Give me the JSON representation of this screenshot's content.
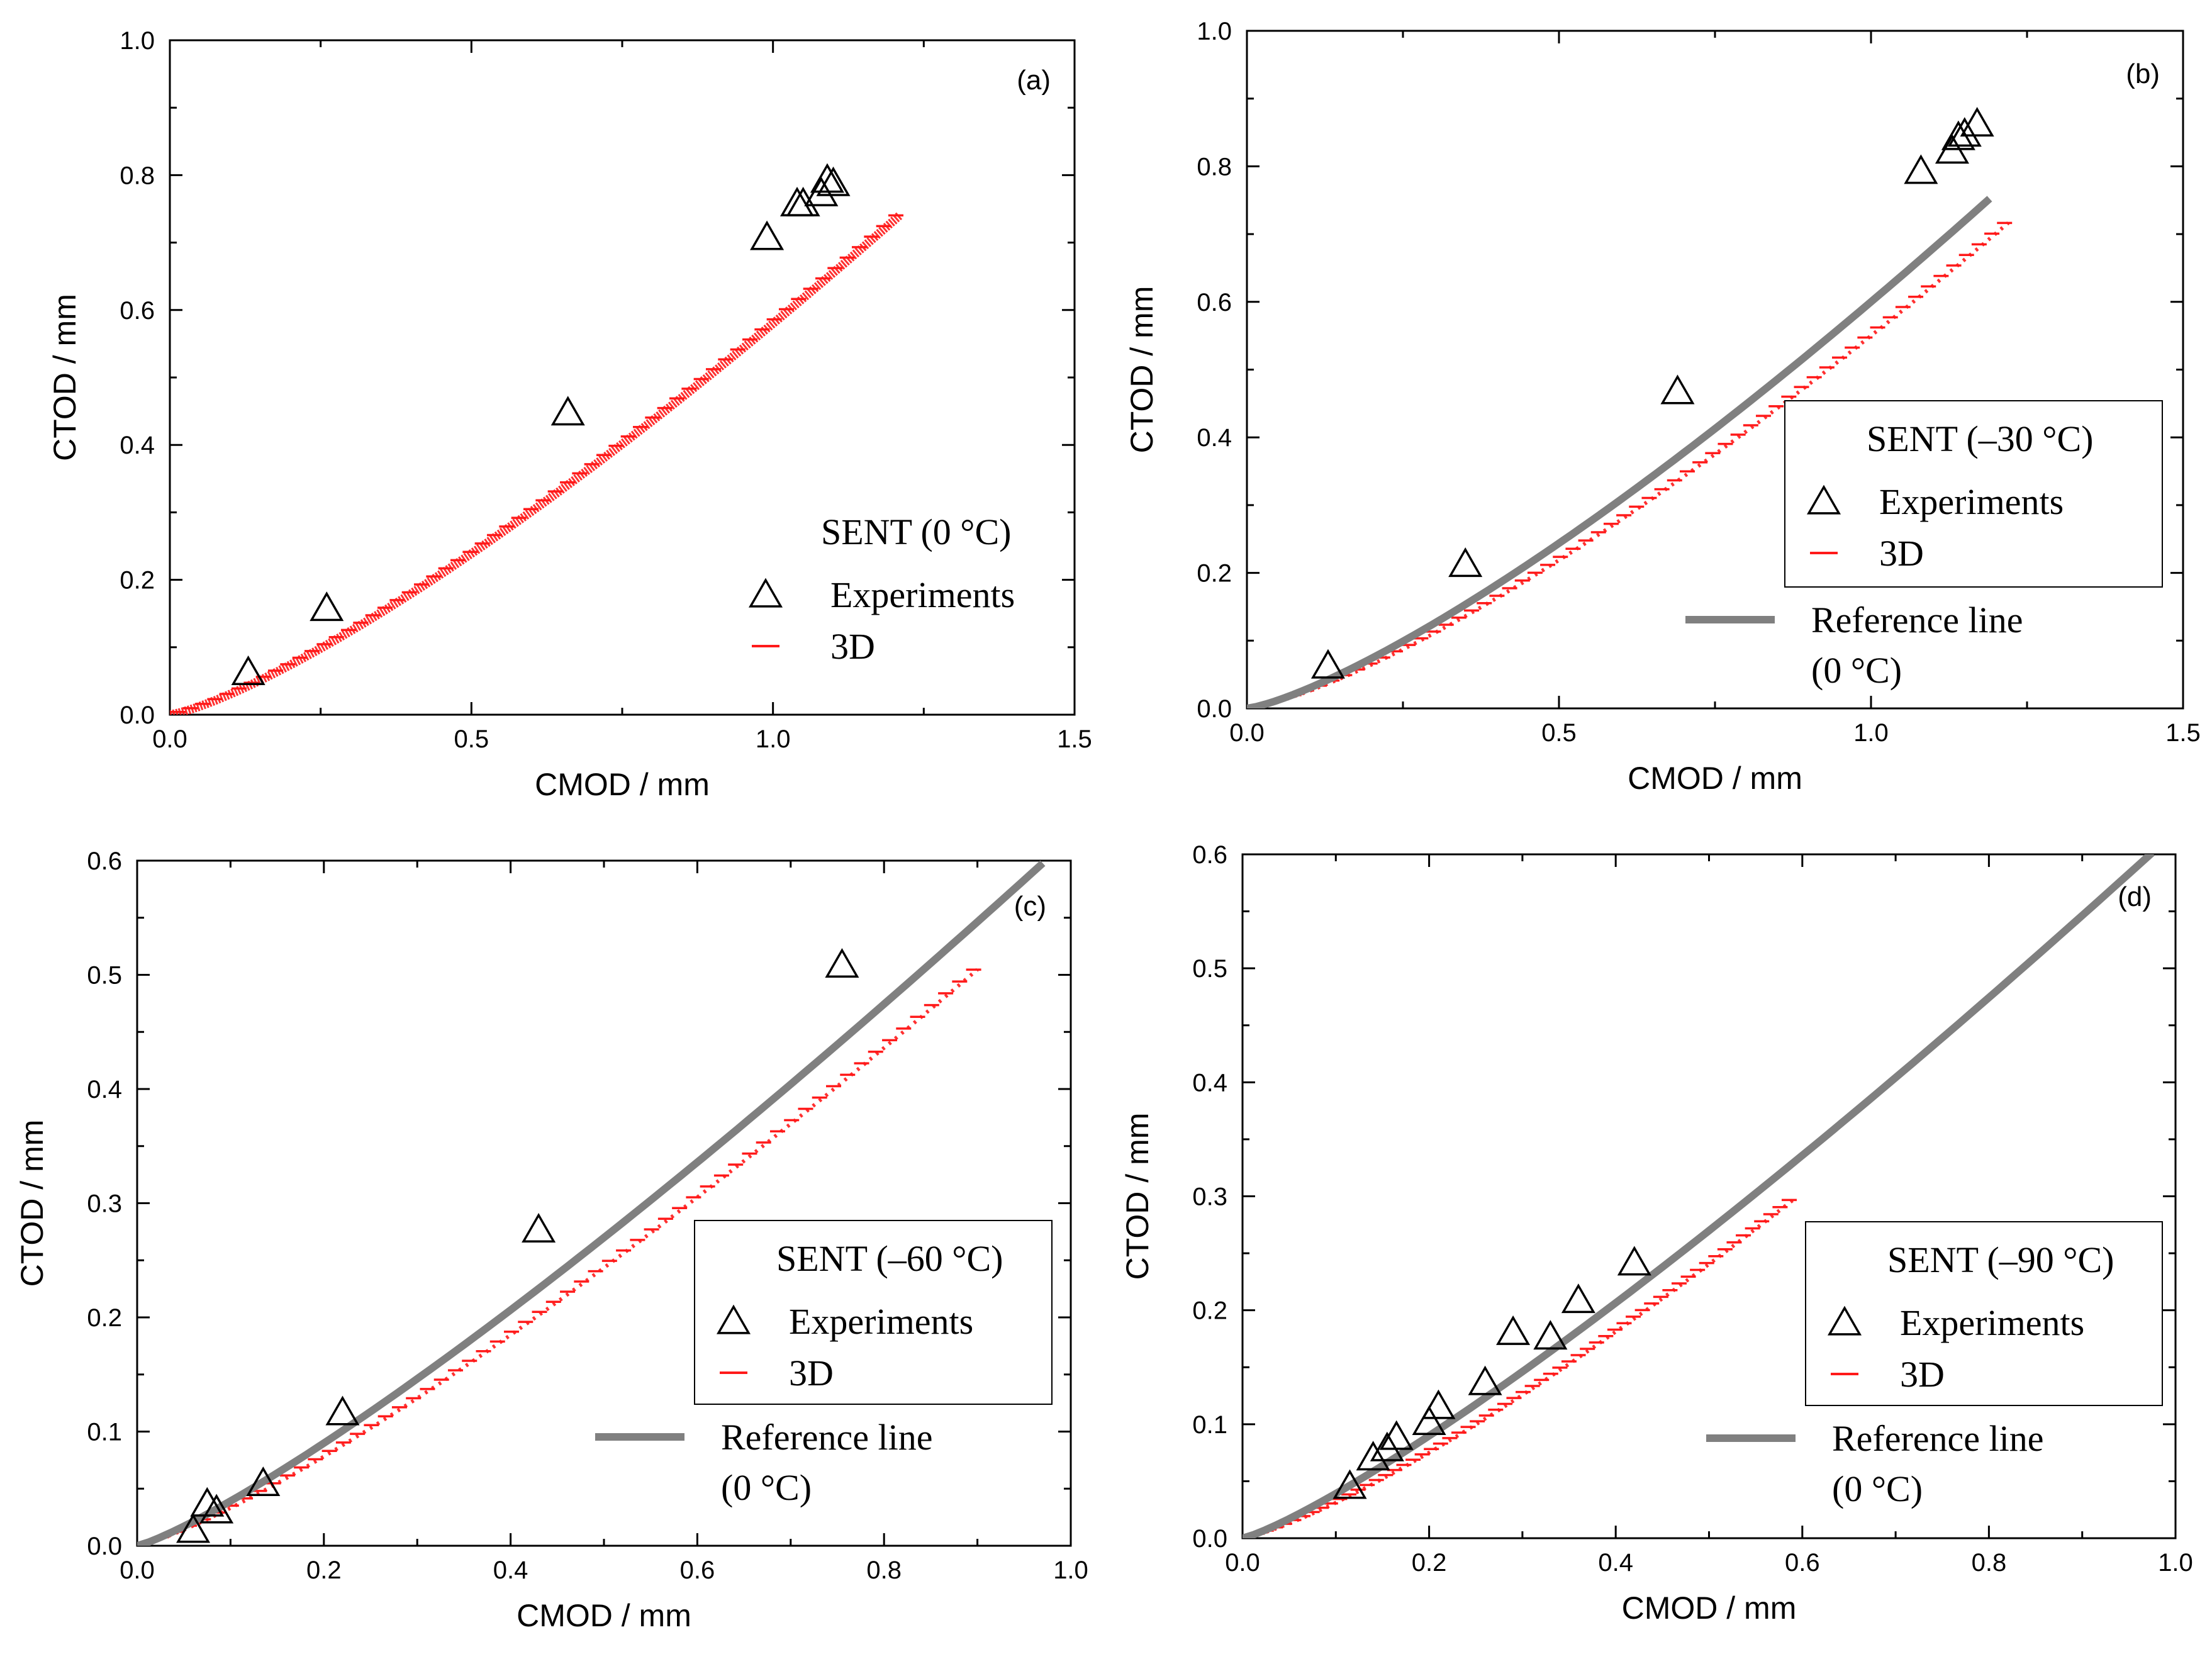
{
  "chart_data": [
    {
      "type": "scatter",
      "panel": "(a)",
      "xlabel": "CMOD / mm",
      "ylabel": "CTOD / mm",
      "xlim": [
        0,
        1.5
      ],
      "ylim": [
        0,
        1.0
      ],
      "xticks": [
        "0.0",
        "0.5",
        "1.0",
        "1.5"
      ],
      "yticks": [
        "0.0",
        "0.2",
        "0.4",
        "0.6",
        "0.8",
        "1.0"
      ],
      "legend": {
        "title": "SENT (0 °C)",
        "experiments": "Experiments",
        "sim": "3D",
        "ref": null,
        "ref2": null,
        "frame": false
      },
      "experiments": {
        "x": [
          0.13,
          0.26,
          0.66,
          0.99,
          1.04,
          1.05,
          1.08,
          1.09,
          1.1
        ],
        "y": [
          0.065,
          0.16,
          0.45,
          0.71,
          0.76,
          0.76,
          0.775,
          0.795,
          0.79
        ]
      },
      "sim_3d": {
        "x_end": 1.21,
        "k": 0.58,
        "p": 1.28
      },
      "reference": null
    },
    {
      "type": "scatter",
      "panel": "(b)",
      "xlabel": "CMOD / mm",
      "ylabel": "CTOD / mm",
      "xlim": [
        0,
        1.5
      ],
      "ylim": [
        0,
        1.0
      ],
      "xticks": [
        "0.0",
        "0.5",
        "1.0",
        "1.5"
      ],
      "yticks": [
        "0.0",
        "0.2",
        "0.4",
        "0.6",
        "0.8",
        "1.0"
      ],
      "legend": {
        "title": "SENT (–30 °C)",
        "experiments": "Experiments",
        "sim": "3D",
        "ref": "Reference line",
        "ref2": "(0 °C)",
        "frame": true
      },
      "experiments": {
        "x": [
          0.13,
          0.35,
          0.69,
          1.08,
          1.13,
          1.14,
          1.15,
          1.17
        ],
        "y": [
          0.065,
          0.215,
          0.47,
          0.795,
          0.825,
          0.845,
          0.85,
          0.865
        ]
      },
      "sim_3d": {
        "x_end": 1.22,
        "k": 0.55,
        "p": 1.33
      },
      "reference": {
        "x_end": 1.19,
        "k": 0.6,
        "p": 1.3
      }
    },
    {
      "type": "scatter",
      "panel": "(c)",
      "xlabel": "CMOD / mm",
      "ylabel": "CTOD / mm",
      "xlim": [
        0,
        1.0
      ],
      "ylim": [
        0,
        0.6
      ],
      "xticks": [
        "0.0",
        "0.2",
        "0.4",
        "0.6",
        "0.8",
        "1.0"
      ],
      "yticks": [
        "0.0",
        "0.1",
        "0.2",
        "0.3",
        "0.4",
        "0.5",
        "0.6"
      ],
      "legend": {
        "title": "SENT (–60 °C)",
        "experiments": "Experiments",
        "sim": "3D",
        "ref": "Reference line",
        "ref2": "(0 °C)",
        "frame": true
      },
      "experiments": {
        "x": [
          0.06,
          0.075,
          0.085,
          0.135,
          0.22,
          0.43,
          0.755
        ],
        "y": [
          0.015,
          0.038,
          0.032,
          0.056,
          0.118,
          0.278,
          0.51
        ]
      },
      "sim_3d": {
        "x_end": 0.9,
        "k": 0.575,
        "p": 1.24
      },
      "reference": {
        "x_end": 0.97,
        "k": 0.62,
        "p": 1.2
      }
    },
    {
      "type": "scatter",
      "panel": "(d)",
      "xlabel": "CMOD / mm",
      "ylabel": "CTOD / mm",
      "xlim": [
        0,
        1.0
      ],
      "ylim": [
        0,
        0.6
      ],
      "xticks": [
        "0.0",
        "0.2",
        "0.4",
        "0.6",
        "0.8",
        "1.0"
      ],
      "yticks": [
        "0.0",
        "0.1",
        "0.2",
        "0.3",
        "0.4",
        "0.5",
        "0.6"
      ],
      "legend": {
        "title": "SENT (–90 °C)",
        "experiments": "Experiments",
        "sim": "3D",
        "ref": "Reference line",
        "ref2": "(0 °C)",
        "frame": true
      },
      "experiments": {
        "x": [
          0.115,
          0.14,
          0.155,
          0.165,
          0.2,
          0.21,
          0.26,
          0.29,
          0.33,
          0.36,
          0.42
        ],
        "y": [
          0.047,
          0.072,
          0.08,
          0.09,
          0.103,
          0.117,
          0.138,
          0.182,
          0.178,
          0.21,
          0.243
        ]
      },
      "sim_3d": {
        "x_end": 0.59,
        "k": 0.58,
        "p": 1.27
      },
      "reference": {
        "x_end": 0.975,
        "k": 0.62,
        "p": 1.2
      }
    }
  ]
}
